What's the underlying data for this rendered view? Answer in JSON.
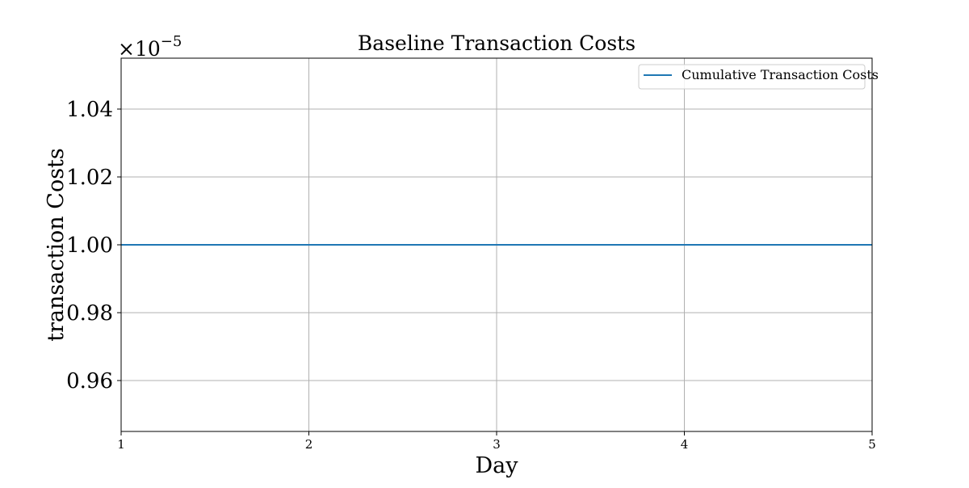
{
  "chart_data": {
    "type": "line",
    "title": "Baseline Transaction Costs",
    "xlabel": "Day",
    "ylabel": "transaction Costs",
    "x_ticks": [
      1,
      2,
      3,
      4,
      5
    ],
    "x_tick_labels": [
      "1",
      "2",
      "3",
      "4",
      "5"
    ],
    "y_ticks": [
      0.96,
      0.98,
      1.0,
      1.02,
      1.04
    ],
    "y_tick_labels": [
      "0.96",
      "0.98",
      "1.00",
      "1.02",
      "1.04"
    ],
    "y_offset_label": {
      "base": "×10",
      "exponent": "−5"
    },
    "xlim": [
      1,
      5
    ],
    "ylim": [
      0.945,
      1.055
    ],
    "grid": true,
    "legend_position": "upper-right",
    "series": [
      {
        "name": "Cumulative Transaction Costs",
        "color": "#1f77b4",
        "x": [
          1,
          2,
          3,
          4,
          5
        ],
        "y": [
          1.0,
          1.0,
          1.0,
          1.0,
          1.0
        ]
      }
    ]
  }
}
